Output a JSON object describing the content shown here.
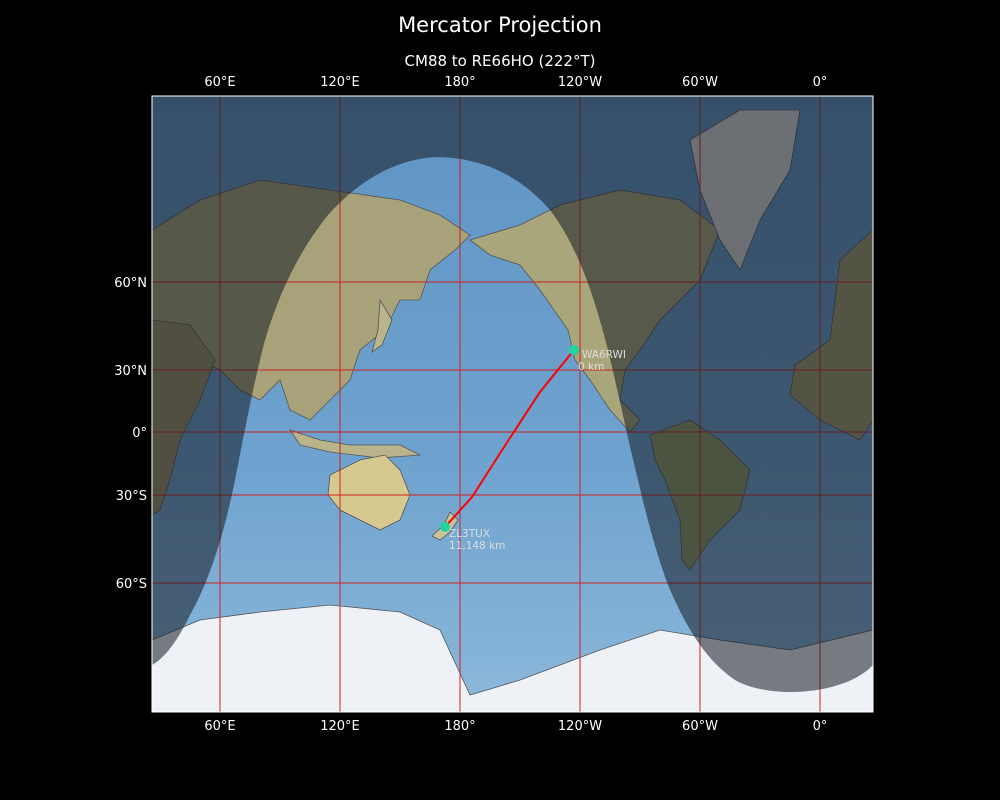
{
  "title": "Mercator Projection",
  "subtitle": "CM88 to RE66HO (222°T)",
  "map": {
    "projection": "Mercator",
    "lon_ticks": [
      "60°E",
      "120°E",
      "180°",
      "120°W",
      "60°W",
      "0°"
    ],
    "lat_ticks": [
      "60°N",
      "30°N",
      "0°",
      "30°S",
      "60°S"
    ],
    "gridline_color": "#cc2222",
    "path_color": "#ff0000",
    "marker_color": "#22d3a0",
    "day_night_overlay": true,
    "stations": [
      {
        "call": "WA6RWI",
        "distance": "0 km"
      },
      {
        "call": "ZL3TUX",
        "distance": "11,148 km"
      }
    ]
  }
}
